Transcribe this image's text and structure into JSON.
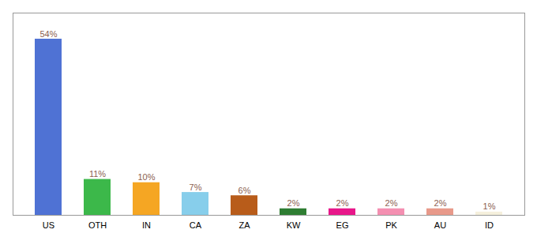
{
  "chart_data": {
    "type": "bar",
    "categories": [
      "US",
      "OTH",
      "IN",
      "CA",
      "ZA",
      "KW",
      "EG",
      "PK",
      "AU",
      "ID"
    ],
    "values": [
      54,
      11,
      10,
      7,
      6,
      2,
      2,
      2,
      2,
      1
    ],
    "value_labels": [
      "54%",
      "11%",
      "10%",
      "7%",
      "6%",
      "2%",
      "2%",
      "2%",
      "2%",
      "1%"
    ],
    "colors": [
      "#4F72D4",
      "#3CB84A",
      "#F5A623",
      "#87CEEB",
      "#B85C1A",
      "#2E7D32",
      "#E8178A",
      "#F48FB1",
      "#E8998A",
      "#F5F0DC"
    ],
    "ylim": [
      0,
      62
    ],
    "data_labels": true,
    "tick_labels": "x",
    "grid": false
  }
}
